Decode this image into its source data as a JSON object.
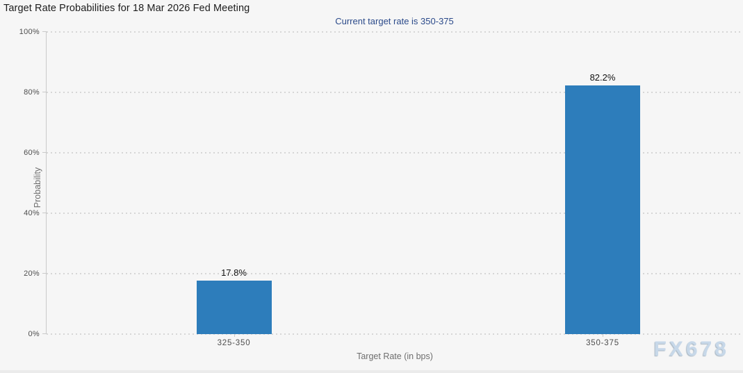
{
  "page": {
    "background_color": "#f6f6f6",
    "watermark_text": "FX678",
    "watermark_color": "#c7d8e9"
  },
  "chart_data": {
    "type": "bar",
    "title": "Target Rate Probabilities for 18 Mar 2026 Fed Meeting",
    "subtitle": "Current target rate is 350-375",
    "categories": [
      "325-350",
      "350-375"
    ],
    "values": [
      17.8,
      82.2
    ],
    "value_labels": [
      "17.8%",
      "82.2%"
    ],
    "xlabel": "Target Rate (in bps)",
    "ylabel": "Probability",
    "ylim": [
      0,
      100
    ],
    "ytick_values": [
      0,
      20,
      40,
      60,
      80,
      100
    ],
    "ytick_labels": [
      "0%",
      "20%",
      "40%",
      "60%",
      "80%",
      "100%"
    ],
    "grid": "horizontal-dotted",
    "legend": "none",
    "bar_color": "#2d7dbb",
    "subtitle_color": "#2b4a8a"
  }
}
